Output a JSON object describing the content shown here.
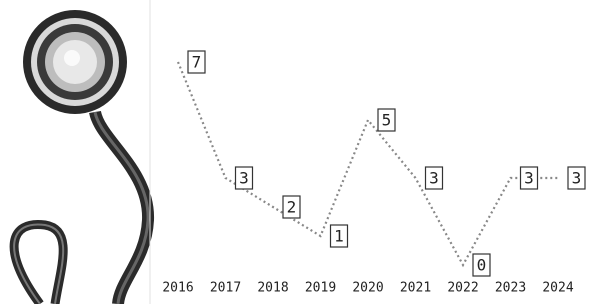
{
  "chart_data": {
    "type": "line",
    "x": [
      "2016",
      "2017",
      "2018",
      "2019",
      "2020",
      "2021",
      "2022",
      "2023",
      "2024"
    ],
    "values": [
      7,
      3,
      2,
      1,
      5,
      3,
      0,
      3,
      3
    ],
    "color": "#888888"
  }
}
